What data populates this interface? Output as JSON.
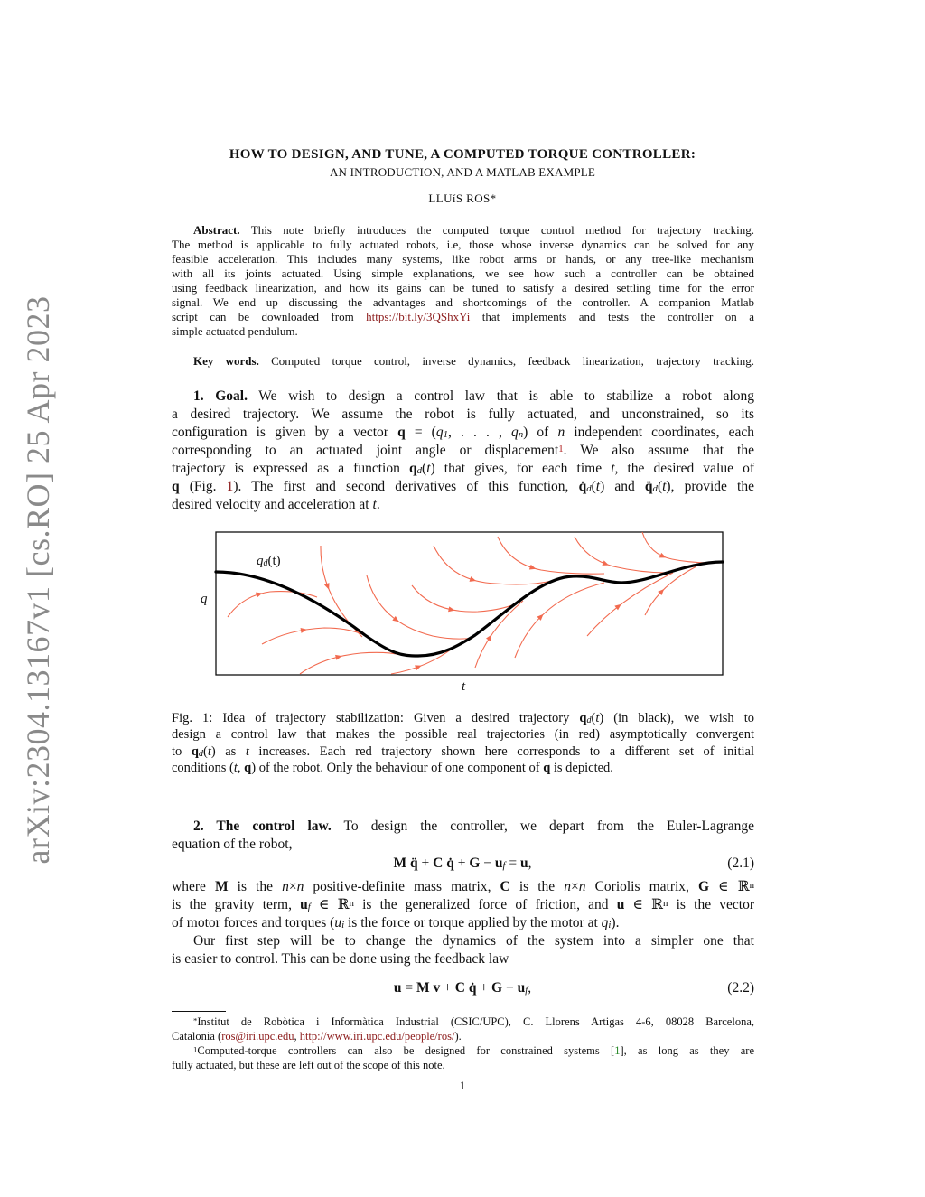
{
  "stamp": "arXiv:2304.13167v1  [cs.RO]  25 Apr 2023",
  "header": {
    "title": "HOW TO DESIGN, AND TUNE, A COMPUTED TORQUE CONTROLLER:",
    "subtitle": "AN INTRODUCTION, AND A MATLAB EXAMPLE",
    "author": "LLUíS ROS*"
  },
  "abstract": [
    [
      {
        "t": "Abstract.",
        "s": "b"
      },
      " This note briefly introduces the computed torque control method for trajectory tracking."
    ],
    [
      "The method is applicable to fully actuated robots, i.e, those whose inverse dynamics can be solved for any"
    ],
    [
      "feasible acceleration. This includes many systems, like robot arms or hands, or any tree-like mechanism"
    ],
    [
      "with all its joints actuated. Using simple explanations, we see how such a controller can be obtained"
    ],
    [
      "using feedback linearization, and how its gains can be tuned to satisfy a desired settling time for the error"
    ],
    [
      "signal. We end up discussing the advantages and shortcomings of the controller. A companion Matlab"
    ],
    [
      "script can be downloaded from ",
      {
        "t": "https://bit.ly/3QShxYi",
        "s": "link"
      },
      " that implements and tests the controller on a"
    ],
    [
      "simple actuated pendulum."
    ]
  ],
  "keywords": [
    [
      {
        "t": "Key words.",
        "s": "b"
      },
      " Computed torque control, inverse dynamics, feedback linearization, trajectory tracking."
    ]
  ],
  "goal": [
    [
      {
        "t": "1. Goal.",
        "s": "b"
      },
      " We wish to design a control law that is able to stabilize a robot along"
    ],
    [
      "a desired trajectory. We assume the robot is fully actuated, and unconstrained, so its"
    ],
    [
      "configuration is given by a vector ",
      {
        "t": "q",
        "s": "b"
      },
      " = (",
      {
        "t": "q",
        "s": "i"
      },
      {
        "t": "1",
        "s": "sub"
      },
      ", . . . , ",
      {
        "t": "q",
        "s": "i"
      },
      {
        "t": "n",
        "s": "sub"
      },
      ") of ",
      {
        "t": "n",
        "s": "i"
      },
      " independent coordinates, each"
    ],
    [
      "corresponding to an actuated joint angle or displacement",
      {
        "t": "1",
        "s": "supl"
      },
      ". We also assume that the"
    ],
    [
      "trajectory is expressed as a function ",
      {
        "t": "q",
        "s": "b"
      },
      {
        "t": "d",
        "s": "sub"
      },
      "(",
      {
        "t": "t",
        "s": "i"
      },
      ") that gives, for each time ",
      {
        "t": "t",
        "s": "i"
      },
      ", the desired value of"
    ],
    [
      {
        "t": "q",
        "s": "b"
      },
      " (Fig. ",
      {
        "t": "1",
        "s": "link"
      },
      "). The first and second derivatives of this function, ",
      {
        "t": "q̇",
        "s": "b"
      },
      {
        "t": "d",
        "s": "sub"
      },
      "(",
      {
        "t": "t",
        "s": "i"
      },
      ") and ",
      {
        "t": "q̈",
        "s": "b"
      },
      {
        "t": "d",
        "s": "sub"
      },
      "(",
      {
        "t": "t",
        "s": "i"
      },
      "), provide the"
    ],
    [
      "desired velocity and acceleration at ",
      {
        "t": "t",
        "s": "i"
      },
      "."
    ]
  ],
  "figure": {
    "curve_label_main": "q",
    "curve_label_sub": "d",
    "curve_label_arg": "(t)",
    "y_label": "q",
    "x_label": "t",
    "desired_color": "#000000",
    "real_color": "#f26a4f"
  },
  "caption": [
    [
      "Fig. 1: Idea of trajectory stabilization: Given a desired trajectory ",
      {
        "t": "q",
        "s": "b"
      },
      {
        "t": "d",
        "s": "sub"
      },
      "(",
      {
        "t": "t",
        "s": "i"
      },
      ") (in black), we wish to"
    ],
    [
      "design a control law that makes the possible real trajectories (in red) asymptotically convergent"
    ],
    [
      "to ",
      {
        "t": "q",
        "s": "b"
      },
      {
        "t": "d",
        "s": "sub"
      },
      "(",
      {
        "t": "t",
        "s": "i"
      },
      ") as ",
      {
        "t": "t",
        "s": "i"
      },
      " increases. Each red trajectory shown here corresponds to a different set of initial"
    ],
    [
      "conditions (",
      {
        "t": "t",
        "s": "i"
      },
      ", ",
      {
        "t": "q",
        "s": "b"
      },
      ") of the robot. Only the behaviour of one component of ",
      {
        "t": "q",
        "s": "b"
      },
      " is depicted."
    ]
  ],
  "sec2a": [
    [
      {
        "t": "2. The control law.",
        "s": "b"
      },
      " To design the controller, we depart from the Euler-Lagrange"
    ],
    [
      "equation of the robot,"
    ]
  ],
  "eq1": {
    "body": [
      {
        "t": "M",
        "s": "b"
      },
      " ",
      {
        "t": "q̈",
        "s": "b"
      },
      " + ",
      {
        "t": "C",
        "s": "b"
      },
      " ",
      {
        "t": "q̇",
        "s": "b"
      },
      " + ",
      {
        "t": "G",
        "s": "b"
      },
      " − ",
      {
        "t": "u",
        "s": "b"
      },
      {
        "t": "f",
        "s": "sub"
      },
      " = ",
      {
        "t": "u",
        "s": "b"
      },
      ","
    ],
    "number": "(2.1)"
  },
  "sec2b": [
    [
      "where ",
      {
        "t": "M",
        "s": "b"
      },
      " is the ",
      {
        "t": "n",
        "s": "i"
      },
      "×",
      {
        "t": "n",
        "s": "i"
      },
      " positive-definite mass matrix, ",
      {
        "t": "C",
        "s": "b"
      },
      " is the ",
      {
        "t": "n",
        "s": "i"
      },
      "×",
      {
        "t": "n",
        "s": "i"
      },
      " Coriolis matrix, ",
      {
        "t": "G",
        "s": "b"
      },
      " ∈ ℝ",
      {
        "t": "n",
        "s": "sup"
      }
    ],
    [
      "is the gravity term, ",
      {
        "t": "u",
        "s": "b"
      },
      {
        "t": "f",
        "s": "sub"
      },
      " ∈ ℝ",
      {
        "t": "n",
        "s": "sup"
      },
      " is the generalized force of friction, and ",
      {
        "t": "u",
        "s": "b"
      },
      " ∈ ℝ",
      {
        "t": "n",
        "s": "sup"
      },
      " is the vector"
    ],
    [
      "of motor forces and torques (",
      {
        "t": "u",
        "s": "i"
      },
      {
        "t": "i",
        "s": "sub"
      },
      " is the force or torque applied by the motor at ",
      {
        "t": "q",
        "s": "i"
      },
      {
        "t": "i",
        "s": "sub"
      },
      ")."
    ]
  ],
  "sec2c": [
    [
      "Our first step will be to change the dynamics of the system into a simpler one that"
    ],
    [
      "is easier to control. This can be done using the feedback law"
    ]
  ],
  "eq2": {
    "body": [
      {
        "t": "u",
        "s": "b"
      },
      " = ",
      {
        "t": "M",
        "s": "b"
      },
      " ",
      {
        "t": "v",
        "s": "b"
      },
      " + ",
      {
        "t": "C",
        "s": "b"
      },
      " ",
      {
        "t": "q̇",
        "s": "b"
      },
      " + ",
      {
        "t": "G",
        "s": "b"
      },
      " − ",
      {
        "t": "u",
        "s": "b"
      },
      {
        "t": "f",
        "s": "sub"
      },
      ","
    ],
    "number": "(2.2)"
  },
  "fn1": [
    [
      {
        "t": "*",
        "s": "sup"
      },
      "Institut de Robòtica i Informàtica Industrial (CSIC/UPC), C. Llorens Artigas 4-6, 08028 Barcelona,"
    ],
    [
      "Catalonia (",
      {
        "t": "ros@iri.upc.edu",
        "s": "link"
      },
      ", ",
      {
        "t": "http://www.iri.upc.edu/people/ros/",
        "s": "link"
      },
      ")."
    ]
  ],
  "fn2": [
    [
      {
        "t": "1",
        "s": "sup"
      },
      "Computed-torque controllers can also be designed for constrained systems [",
      {
        "t": "1",
        "s": "cite"
      },
      "], as long as they are"
    ],
    [
      "fully actuated, but these are left out of the scope of this note."
    ]
  ],
  "page_number": "1"
}
